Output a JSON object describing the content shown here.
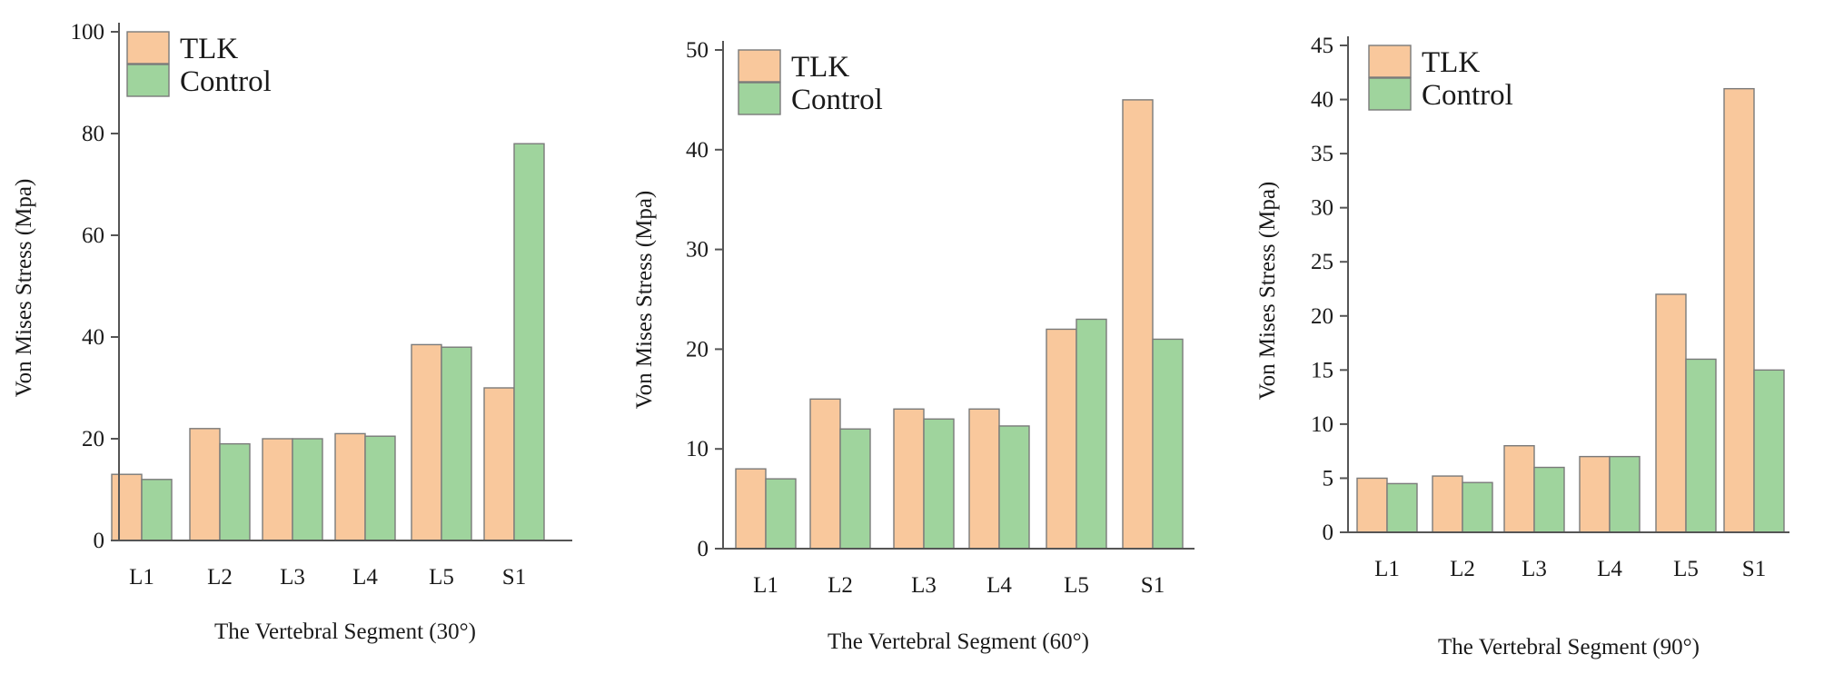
{
  "colors": {
    "tlk": "#f9c89c",
    "control": "#9fd49d"
  },
  "chart_data": [
    {
      "type": "bar",
      "categories": [
        "L1",
        "L2",
        "L3",
        "L4",
        "L5",
        "S1"
      ],
      "series": [
        {
          "name": "TLK",
          "values": [
            13,
            22,
            20,
            21,
            38.5,
            30
          ]
        },
        {
          "name": "Control",
          "values": [
            12,
            19,
            20,
            20.5,
            38,
            78
          ]
        }
      ],
      "xlabel": "The Vertebral Segment (30°)",
      "ylabel": "Von Mises Stress (Mpa)",
      "ylim": [
        0,
        100
      ],
      "yticks": [
        0,
        20,
        40,
        60,
        80,
        100
      ],
      "legend": "top-left"
    },
    {
      "type": "bar",
      "categories": [
        "L1",
        "L2",
        "L3",
        "L4",
        "L5",
        "S1"
      ],
      "series": [
        {
          "name": "TLK",
          "values": [
            8,
            15,
            14,
            14,
            22,
            45
          ]
        },
        {
          "name": "Control",
          "values": [
            7,
            12,
            13,
            12.3,
            23,
            21
          ]
        }
      ],
      "xlabel": "The Vertebral Segment (60°)",
      "ylabel": "Von Mises Stress (Mpa)",
      "ylim": [
        0,
        50
      ],
      "yticks": [
        0,
        10,
        20,
        30,
        40,
        50
      ],
      "legend": "top-left"
    },
    {
      "type": "bar",
      "categories": [
        "L1",
        "L2",
        "L3",
        "L4",
        "L5",
        "S1"
      ],
      "series": [
        {
          "name": "TLK",
          "values": [
            5,
            5.2,
            8,
            7,
            22,
            41
          ]
        },
        {
          "name": "Control",
          "values": [
            4.5,
            4.6,
            6,
            7,
            16,
            15
          ]
        }
      ],
      "xlabel": "The Vertebral Segment (90°)",
      "ylabel": "Von Mises Stress (Mpa)",
      "ylim": [
        0,
        45
      ],
      "yticks": [
        0,
        5,
        10,
        15,
        20,
        25,
        30,
        35,
        40,
        45
      ],
      "legend": "top-left"
    }
  ]
}
